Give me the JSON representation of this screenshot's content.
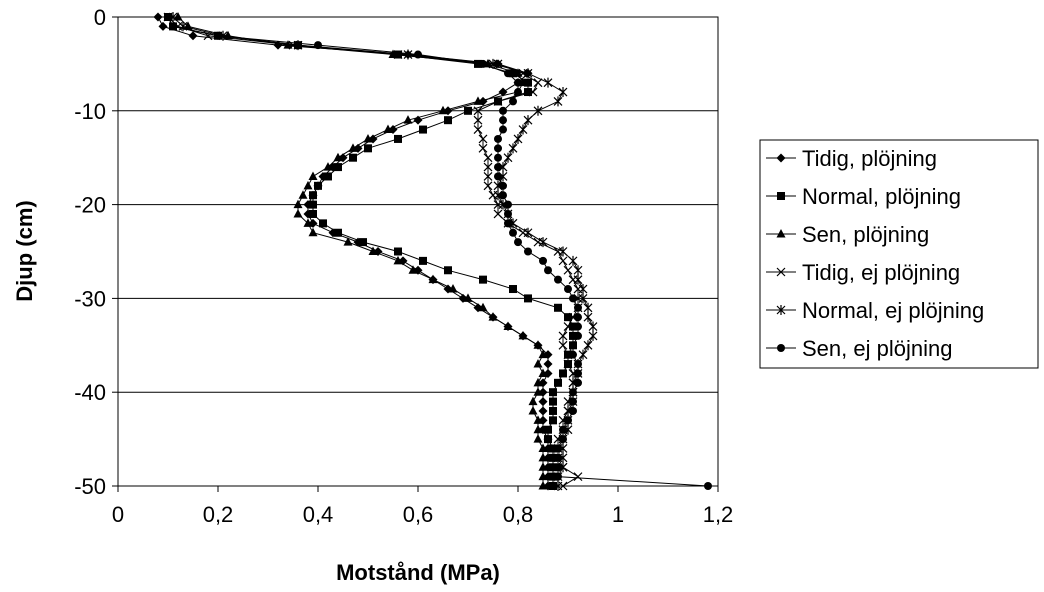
{
  "chart_data": {
    "type": "line",
    "title": "",
    "xlabel": "Motstånd (MPa)",
    "ylabel": "Djup (cm)",
    "xlim": [
      0,
      1.2
    ],
    "ylim": [
      -50,
      0
    ],
    "x_ticks": [
      0,
      0.2,
      0.4,
      0.6,
      0.8,
      1,
      1.2
    ],
    "x_tick_labels": [
      "0",
      "0,2",
      "0,4",
      "0,6",
      "0,8",
      "1",
      "1,2"
    ],
    "y_ticks": [
      0,
      -10,
      -20,
      -30,
      -40,
      -50
    ],
    "y_tick_labels": [
      "0",
      "-10",
      "-20",
      "-30",
      "-40",
      "-50"
    ],
    "grid": "horizontal",
    "legend_position": "right",
    "line_color": "#000000",
    "series": [
      {
        "name": "Tidig, plöjning",
        "marker": "diamond",
        "points": [
          [
            0.08,
            0
          ],
          [
            0.09,
            -1
          ],
          [
            0.15,
            -2
          ],
          [
            0.32,
            -3
          ],
          [
            0.58,
            -4
          ],
          [
            0.76,
            -5
          ],
          [
            0.82,
            -6
          ],
          [
            0.8,
            -7
          ],
          [
            0.77,
            -8
          ],
          [
            0.73,
            -9
          ],
          [
            0.66,
            -10
          ],
          [
            0.6,
            -11
          ],
          [
            0.55,
            -12
          ],
          [
            0.51,
            -13
          ],
          [
            0.48,
            -14
          ],
          [
            0.45,
            -15
          ],
          [
            0.43,
            -16
          ],
          [
            0.41,
            -17
          ],
          [
            0.4,
            -18
          ],
          [
            0.39,
            -19
          ],
          [
            0.38,
            -20
          ],
          [
            0.38,
            -21
          ],
          [
            0.39,
            -22
          ],
          [
            0.43,
            -23
          ],
          [
            0.48,
            -24
          ],
          [
            0.52,
            -25
          ],
          [
            0.57,
            -26
          ],
          [
            0.6,
            -27
          ],
          [
            0.63,
            -28
          ],
          [
            0.66,
            -29
          ],
          [
            0.69,
            -30
          ],
          [
            0.72,
            -31
          ],
          [
            0.75,
            -32
          ],
          [
            0.78,
            -33
          ],
          [
            0.81,
            -34
          ],
          [
            0.84,
            -35
          ],
          [
            0.86,
            -36
          ],
          [
            0.86,
            -37
          ],
          [
            0.86,
            -38
          ],
          [
            0.85,
            -39
          ],
          [
            0.85,
            -40
          ],
          [
            0.85,
            -41
          ],
          [
            0.85,
            -42
          ],
          [
            0.85,
            -43
          ],
          [
            0.85,
            -44
          ],
          [
            0.86,
            -45
          ],
          [
            0.86,
            -46
          ],
          [
            0.86,
            -47
          ],
          [
            0.86,
            -48
          ],
          [
            0.86,
            -49
          ],
          [
            0.86,
            -50
          ]
        ]
      },
      {
        "name": "Normal, plöjning",
        "marker": "square",
        "points": [
          [
            0.1,
            0
          ],
          [
            0.11,
            -1
          ],
          [
            0.2,
            -2
          ],
          [
            0.36,
            -3
          ],
          [
            0.56,
            -4
          ],
          [
            0.72,
            -5
          ],
          [
            0.79,
            -6
          ],
          [
            0.82,
            -7
          ],
          [
            0.82,
            -8
          ],
          [
            0.76,
            -9
          ],
          [
            0.7,
            -10
          ],
          [
            0.66,
            -11
          ],
          [
            0.61,
            -12
          ],
          [
            0.56,
            -13
          ],
          [
            0.5,
            -14
          ],
          [
            0.47,
            -15
          ],
          [
            0.44,
            -16
          ],
          [
            0.42,
            -17
          ],
          [
            0.4,
            -18
          ],
          [
            0.39,
            -19
          ],
          [
            0.39,
            -20
          ],
          [
            0.39,
            -21
          ],
          [
            0.41,
            -22
          ],
          [
            0.44,
            -23
          ],
          [
            0.49,
            -24
          ],
          [
            0.56,
            -25
          ],
          [
            0.61,
            -26
          ],
          [
            0.66,
            -27
          ],
          [
            0.73,
            -28
          ],
          [
            0.79,
            -29
          ],
          [
            0.82,
            -30
          ],
          [
            0.88,
            -31
          ],
          [
            0.9,
            -32
          ],
          [
            0.91,
            -33
          ],
          [
            0.91,
            -34
          ],
          [
            0.91,
            -35
          ],
          [
            0.9,
            -36
          ],
          [
            0.9,
            -37
          ],
          [
            0.89,
            -38
          ],
          [
            0.88,
            -39
          ],
          [
            0.87,
            -40
          ],
          [
            0.87,
            -41
          ],
          [
            0.87,
            -42
          ],
          [
            0.87,
            -43
          ],
          [
            0.86,
            -44
          ],
          [
            0.86,
            -45
          ],
          [
            0.87,
            -46
          ],
          [
            0.87,
            -47
          ],
          [
            0.87,
            -48
          ],
          [
            0.87,
            -49
          ],
          [
            0.87,
            -50
          ]
        ]
      },
      {
        "name": "Sen, plöjning",
        "marker": "triangle",
        "points": [
          [
            0.12,
            0
          ],
          [
            0.14,
            -1
          ],
          [
            0.22,
            -2
          ],
          [
            0.34,
            -3
          ],
          [
            0.55,
            -4
          ],
          [
            0.74,
            -5
          ],
          [
            0.8,
            -6
          ],
          [
            0.81,
            -7
          ],
          [
            0.8,
            -8
          ],
          [
            0.72,
            -9
          ],
          [
            0.65,
            -10
          ],
          [
            0.58,
            -11
          ],
          [
            0.54,
            -12
          ],
          [
            0.5,
            -13
          ],
          [
            0.47,
            -14
          ],
          [
            0.44,
            -15
          ],
          [
            0.42,
            -16
          ],
          [
            0.39,
            -17
          ],
          [
            0.38,
            -18
          ],
          [
            0.37,
            -19
          ],
          [
            0.36,
            -20
          ],
          [
            0.36,
            -21
          ],
          [
            0.38,
            -22
          ],
          [
            0.39,
            -23
          ],
          [
            0.46,
            -24
          ],
          [
            0.51,
            -25
          ],
          [
            0.56,
            -26
          ],
          [
            0.59,
            -27
          ],
          [
            0.63,
            -28
          ],
          [
            0.67,
            -29
          ],
          [
            0.7,
            -30
          ],
          [
            0.73,
            -31
          ],
          [
            0.75,
            -32
          ],
          [
            0.78,
            -33
          ],
          [
            0.81,
            -34
          ],
          [
            0.84,
            -35
          ],
          [
            0.85,
            -36
          ],
          [
            0.84,
            -37
          ],
          [
            0.85,
            -38
          ],
          [
            0.84,
            -39
          ],
          [
            0.84,
            -40
          ],
          [
            0.83,
            -41
          ],
          [
            0.83,
            -42
          ],
          [
            0.84,
            -43
          ],
          [
            0.84,
            -44
          ],
          [
            0.84,
            -45
          ],
          [
            0.85,
            -46
          ],
          [
            0.85,
            -47
          ],
          [
            0.85,
            -48
          ],
          [
            0.85,
            -49
          ],
          [
            0.85,
            -50
          ]
        ]
      },
      {
        "name": "Tidig, ej plöjning",
        "marker": "x",
        "points": [
          [
            0.1,
            0
          ],
          [
            0.12,
            -1
          ],
          [
            0.18,
            -2
          ],
          [
            0.35,
            -3
          ],
          [
            0.56,
            -4
          ],
          [
            0.76,
            -5
          ],
          [
            0.81,
            -6
          ],
          [
            0.84,
            -7
          ],
          [
            0.83,
            -8
          ],
          [
            0.76,
            -9
          ],
          [
            0.72,
            -10
          ],
          [
            0.72,
            -11
          ],
          [
            0.72,
            -12
          ],
          [
            0.73,
            -13
          ],
          [
            0.73,
            -14
          ],
          [
            0.74,
            -15
          ],
          [
            0.74,
            -16
          ],
          [
            0.74,
            -17
          ],
          [
            0.74,
            -18
          ],
          [
            0.75,
            -19
          ],
          [
            0.76,
            -20
          ],
          [
            0.76,
            -21
          ],
          [
            0.78,
            -22
          ],
          [
            0.81,
            -23
          ],
          [
            0.84,
            -24
          ],
          [
            0.88,
            -25
          ],
          [
            0.89,
            -26
          ],
          [
            0.9,
            -27
          ],
          [
            0.91,
            -28
          ],
          [
            0.92,
            -29
          ],
          [
            0.92,
            -30
          ],
          [
            0.92,
            -31
          ],
          [
            0.91,
            -32
          ],
          [
            0.9,
            -33
          ],
          [
            0.89,
            -34
          ],
          [
            0.89,
            -35
          ],
          [
            0.9,
            -36
          ],
          [
            0.9,
            -37
          ],
          [
            0.91,
            -38
          ],
          [
            0.91,
            -39
          ],
          [
            0.91,
            -40
          ],
          [
            0.9,
            -41
          ],
          [
            0.9,
            -42
          ],
          [
            0.89,
            -43
          ],
          [
            0.89,
            -44
          ],
          [
            0.88,
            -45
          ],
          [
            0.88,
            -46
          ],
          [
            0.88,
            -47
          ],
          [
            0.89,
            -48
          ],
          [
            0.92,
            -49
          ],
          [
            0.89,
            -50
          ]
        ]
      },
      {
        "name": "Normal, ej plöjning",
        "marker": "star",
        "points": [
          [
            0.11,
            0
          ],
          [
            0.13,
            -1
          ],
          [
            0.21,
            -2
          ],
          [
            0.36,
            -3
          ],
          [
            0.58,
            -4
          ],
          [
            0.75,
            -5
          ],
          [
            0.82,
            -6
          ],
          [
            0.86,
            -7
          ],
          [
            0.89,
            -8
          ],
          [
            0.88,
            -9
          ],
          [
            0.84,
            -10
          ],
          [
            0.82,
            -11
          ],
          [
            0.81,
            -12
          ],
          [
            0.8,
            -13
          ],
          [
            0.79,
            -14
          ],
          [
            0.78,
            -15
          ],
          [
            0.77,
            -16
          ],
          [
            0.77,
            -17
          ],
          [
            0.76,
            -18
          ],
          [
            0.76,
            -19
          ],
          [
            0.77,
            -20
          ],
          [
            0.78,
            -21
          ],
          [
            0.79,
            -22
          ],
          [
            0.82,
            -23
          ],
          [
            0.85,
            -24
          ],
          [
            0.89,
            -25
          ],
          [
            0.91,
            -26
          ],
          [
            0.92,
            -27
          ],
          [
            0.92,
            -28
          ],
          [
            0.93,
            -29
          ],
          [
            0.93,
            -30
          ],
          [
            0.94,
            -31
          ],
          [
            0.94,
            -32
          ],
          [
            0.95,
            -33
          ],
          [
            0.95,
            -34
          ],
          [
            0.94,
            -35
          ],
          [
            0.93,
            -36
          ],
          [
            0.92,
            -37
          ],
          [
            0.92,
            -38
          ],
          [
            0.91,
            -39
          ],
          [
            0.91,
            -40
          ],
          [
            0.91,
            -41
          ],
          [
            0.9,
            -42
          ],
          [
            0.9,
            -43
          ],
          [
            0.9,
            -44
          ],
          [
            0.89,
            -45
          ],
          [
            0.89,
            -46
          ],
          [
            0.89,
            -47
          ],
          [
            0.89,
            -48
          ],
          [
            0.88,
            -49
          ],
          [
            0.88,
            -50
          ]
        ]
      },
      {
        "name": "Sen, ej plöjning",
        "marker": "circle",
        "points": [
          [
            0.1,
            0
          ],
          [
            0.11,
            -1
          ],
          [
            0.2,
            -2
          ],
          [
            0.4,
            -3
          ],
          [
            0.6,
            -4
          ],
          [
            0.73,
            -5
          ],
          [
            0.78,
            -6
          ],
          [
            0.8,
            -7
          ],
          [
            0.8,
            -8
          ],
          [
            0.79,
            -9
          ],
          [
            0.77,
            -10
          ],
          [
            0.77,
            -11
          ],
          [
            0.77,
            -12
          ],
          [
            0.76,
            -13
          ],
          [
            0.76,
            -14
          ],
          [
            0.76,
            -15
          ],
          [
            0.76,
            -16
          ],
          [
            0.76,
            -17
          ],
          [
            0.77,
            -18
          ],
          [
            0.77,
            -19
          ],
          [
            0.78,
            -20
          ],
          [
            0.78,
            -21
          ],
          [
            0.78,
            -22
          ],
          [
            0.79,
            -23
          ],
          [
            0.8,
            -24
          ],
          [
            0.82,
            -25
          ],
          [
            0.85,
            -26
          ],
          [
            0.86,
            -27
          ],
          [
            0.88,
            -28
          ],
          [
            0.9,
            -29
          ],
          [
            0.91,
            -30
          ],
          [
            0.92,
            -31
          ],
          [
            0.92,
            -32
          ],
          [
            0.92,
            -33
          ],
          [
            0.92,
            -34
          ],
          [
            0.91,
            -35
          ],
          [
            0.91,
            -36
          ],
          [
            0.92,
            -37
          ],
          [
            0.92,
            -38
          ],
          [
            0.92,
            -39
          ],
          [
            0.91,
            -40
          ],
          [
            0.91,
            -41
          ],
          [
            0.91,
            -42
          ],
          [
            0.9,
            -43
          ],
          [
            0.89,
            -44
          ],
          [
            0.89,
            -45
          ],
          [
            0.88,
            -46
          ],
          [
            0.88,
            -47
          ],
          [
            0.88,
            -48
          ],
          [
            0.88,
            -49
          ],
          [
            1.18,
            -50
          ]
        ]
      }
    ]
  }
}
